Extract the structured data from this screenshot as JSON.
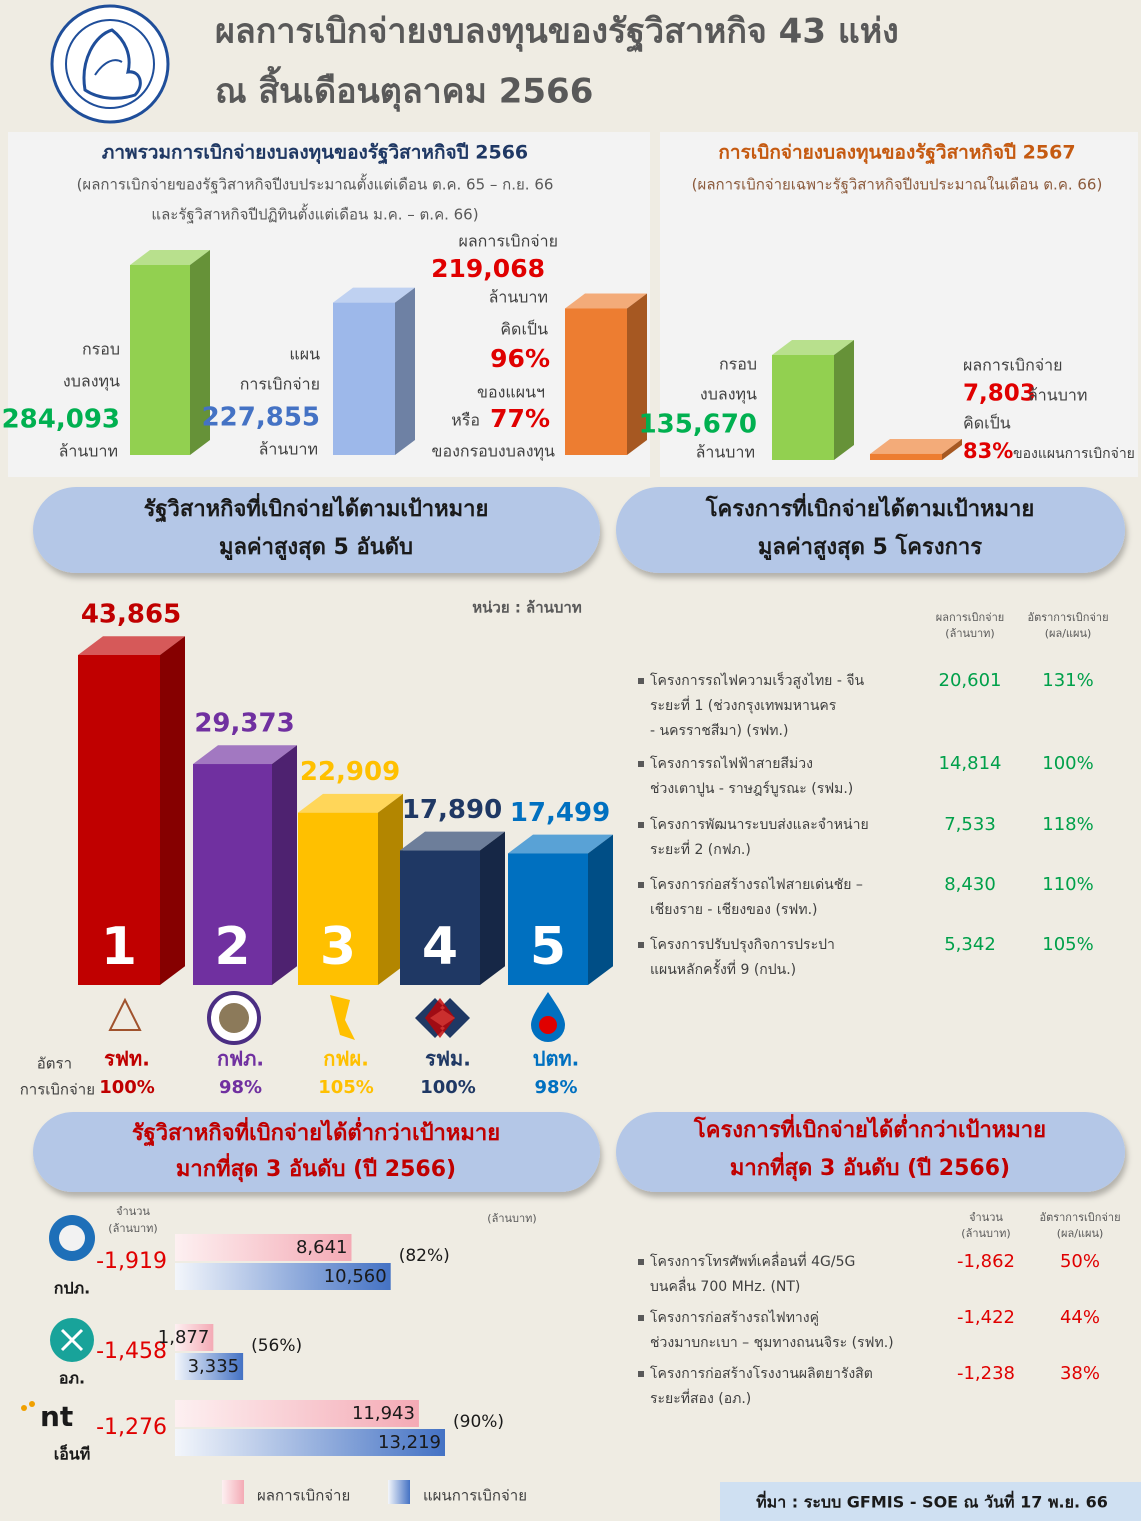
{
  "header": {
    "title_lines": [
      "ผลการเบิกจ่ายงบลงทุนของรัฐวิสาหกิจ 43 แห่ง",
      "ณ สิ้นเดือนตุลาคม 2566"
    ]
  },
  "overview_2566": {
    "title": "ภาพรวมการเบิกจ่ายงบลงทุนของรัฐวิสาหกิจปี 2566",
    "subtitle_lines": [
      "(ผลการเบิกจ่ายของรัฐวิสาหกิจปีงบประมาณตั้งแต่เดือน ต.ค. 65 – ก.ย. 66",
      "และรัฐวิสาหกิจปีปฏิทินตั้งแต่เดือน ม.ค. – ต.ค. 66)"
    ],
    "budget": {
      "label_lines": [
        "กรอบ",
        "งบลงทุน"
      ],
      "value": 284093,
      "value_label": "284,093",
      "unit": "ล้านบาท",
      "color": "#92d050"
    },
    "plan": {
      "label_lines": [
        "แผน",
        "การเบิกจ่าย"
      ],
      "value": 227855,
      "value_label": "227,855",
      "unit": "ล้านบาท",
      "color": "#9db8ea"
    },
    "actual": {
      "label": "ผลการเบิกจ่าย",
      "value": 219068,
      "value_label": "219,068",
      "unit": "ล้านบาท",
      "color": "#ed7d31",
      "of_plan_label": "คิดเป็น",
      "of_plan": "96%",
      "of_plan_suffix": "ของแผนฯ",
      "or": "หรือ",
      "of_budget": "77%",
      "of_budget_suffix": "ของกรอบงบลงทุน"
    }
  },
  "overview_2567": {
    "title": "การเบิกจ่ายงบลงทุนของรัฐวิสาหกิจปี 2567",
    "subtitle": "(ผลการเบิกจ่ายเฉพาะรัฐวิสาหกิจปีงบประมาณในเดือน ต.ค. 66)",
    "budget": {
      "label_lines": [
        "กรอบ",
        "งบลงทุน"
      ],
      "value": 135670,
      "value_label": "135,670",
      "unit": "ล้านบาท",
      "color": "#92d050"
    },
    "actual": {
      "label": "ผลการเบิกจ่าย",
      "value": 7803,
      "value_label": "7,803",
      "unit": "ล้านบาท",
      "color": "#ed7d31",
      "of_plan_label": "คิดเป็น",
      "of_plan": "83%",
      "of_plan_suffix": "ของแผนการเบิกจ่าย"
    }
  },
  "top5_enterprises": {
    "banner_lines": [
      "รัฐวิสาหกิจที่เบิกจ่ายได้ตามเป้าหมาย",
      "มูลค่าสูงสุด 5 อันดับ"
    ],
    "unit": "หน่วย : ล้านบาท",
    "rate_label_lines": [
      "อัตรา",
      "การเบิกจ่าย"
    ],
    "items": [
      {
        "rank": "1",
        "name": "รฟท.",
        "value": 43865,
        "value_label": "43,865",
        "rate": "100%",
        "color": "#c00000"
      },
      {
        "rank": "2",
        "name": "กฟภ.",
        "value": 29373,
        "value_label": "29,373",
        "rate": "98%",
        "color": "#7030a0"
      },
      {
        "rank": "3",
        "name": "กฟผ.",
        "value": 22909,
        "value_label": "22,909",
        "rate": "105%",
        "color": "#ffc000"
      },
      {
        "rank": "4",
        "name": "รฟม.",
        "value": 17890,
        "value_label": "17,890",
        "rate": "100%",
        "color": "#1f3864"
      },
      {
        "rank": "5",
        "name": "ปตท.",
        "value": 17499,
        "value_label": "17,499",
        "rate": "98%",
        "color": "#0070c0"
      }
    ]
  },
  "top5_projects": {
    "banner_lines": [
      "โครงการที่เบิกจ่ายได้ตามเป้าหมาย",
      "มูลค่าสูงสุด 5 โครงการ"
    ],
    "column_headers": [
      [
        "ผลการเบิกจ่าย",
        "(ล้านบาท)"
      ],
      [
        "อัตราการเบิกจ่าย",
        "(ผล/แผน)"
      ]
    ],
    "rows": [
      {
        "name_lines": [
          "โครงการรถไฟความเร็วสูงไทย - จีน",
          "ระยะที่ 1 (ช่วงกรุงเทพมหานคร",
          "- นครราชสีมา) (รฟท.)"
        ],
        "amount": "20,601",
        "rate": "131%"
      },
      {
        "name_lines": [
          "โครงการรถไฟฟ้าสายสีม่วง",
          "ช่วงเตาปูน - ราษฎร์บูรณะ (รฟม.)"
        ],
        "amount": "14,814",
        "rate": "100%"
      },
      {
        "name_lines": [
          "โครงการพัฒนาระบบส่งและจำหน่าย",
          "ระยะที่ 2 (กฟภ.)"
        ],
        "amount": "7,533",
        "rate": "118%"
      },
      {
        "name_lines": [
          "โครงการก่อสร้างรถไฟสายเด่นชัย –",
          "เชียงราย - เชียงของ (รฟท.)"
        ],
        "amount": "8,430",
        "rate": "110%"
      },
      {
        "name_lines": [
          "โครงการปรับปรุงกิจการประปา",
          "แผนหลักครั้งที่ 9 (กปน.)"
        ],
        "amount": "5,342",
        "rate": "105%"
      }
    ]
  },
  "bottom3_enterprises": {
    "banner_lines": [
      "รัฐวิสาหกิจที่เบิกจ่ายได้ต่ำกว่าเป้าหมาย",
      "มากที่สุด 3 อันดับ (ปี 2566)"
    ],
    "amount_header_lines": [
      "จำนวน",
      "(ล้านบาท)"
    ],
    "unit": "(ล้านบาท)",
    "items": [
      {
        "name": "กปภ.",
        "shortfall": "-1,919",
        "actual": 8641,
        "actual_label": "8,641",
        "plan": 10560,
        "plan_label": "10,560",
        "pct": "(82%)"
      },
      {
        "name": "อภ.",
        "shortfall": "-1,458",
        "actual": 1877,
        "actual_label": "1,877",
        "plan": 3335,
        "plan_label": "3,335",
        "pct": "(56%)"
      },
      {
        "name": "เอ็นที",
        "shortfall": "-1,276",
        "actual": 11943,
        "actual_label": "11,943",
        "plan": 13219,
        "plan_label": "13,219",
        "pct": "(90%)"
      }
    ],
    "legend": {
      "actual": "ผลการเบิกจ่าย",
      "plan": "แผนการเบิกจ่าย"
    }
  },
  "bottom3_projects": {
    "banner_lines": [
      "โครงการที่เบิกจ่ายได้ต่ำกว่าเป้าหมาย",
      "มากที่สุด 3 อันดับ (ปี 2566)"
    ],
    "column_headers": [
      [
        "จำนวน",
        "(ล้านบาท)"
      ],
      [
        "อัตราการเบิกจ่าย",
        "(ผล/แผน)"
      ]
    ],
    "rows": [
      {
        "name_lines": [
          "โครงการโทรศัพท์เคลื่อนที่ 4G/5G",
          "บนคลื่น 700 MHz. (NT)"
        ],
        "amount": "-1,862",
        "rate": "50%"
      },
      {
        "name_lines": [
          "โครงการก่อสร้างรถไฟทางคู่",
          "ช่วงมาบกะเบา – ชุมทางถนนจิระ (รฟท.)"
        ],
        "amount": "-1,422",
        "rate": "44%"
      },
      {
        "name_lines": [
          "โครงการก่อสร้างโรงงานผลิตยารังสิต",
          "ระยะที่สอง (อภ.)"
        ],
        "amount": "-1,238",
        "rate": "38%"
      }
    ]
  },
  "footer": {
    "source": "ที่มา : ระบบ GFMIS - SOE ณ วันที่ 17 พ.ย. 66"
  }
}
